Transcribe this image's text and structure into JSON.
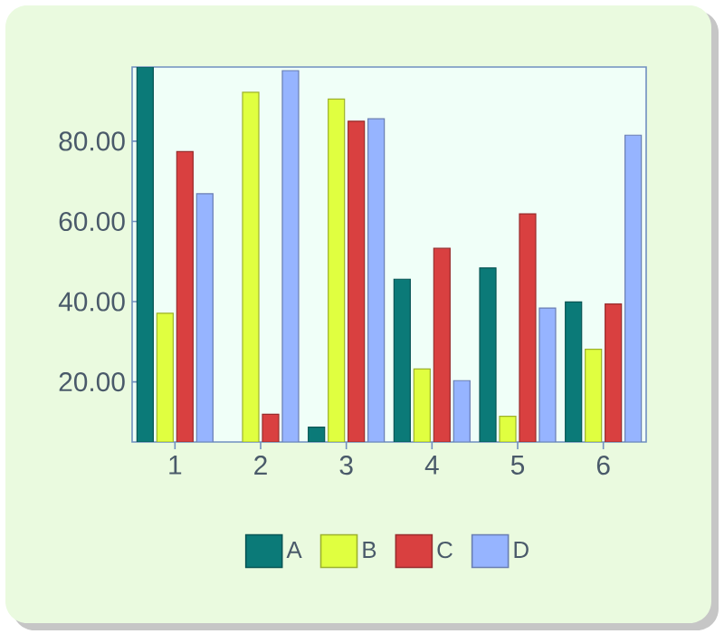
{
  "chart_data": {
    "type": "bar",
    "categories": [
      "1",
      "2",
      "3",
      "4",
      "5",
      "6"
    ],
    "series": [
      {
        "name": "A",
        "color": "#0b7a78",
        "values": [
          98.5,
          null,
          8.7,
          45.6,
          48.4,
          39.9
        ]
      },
      {
        "name": "B",
        "color": "#e0ff40",
        "values": [
          37.1,
          92.2,
          90.5,
          23.2,
          11.4,
          28.1
        ]
      },
      {
        "name": "C",
        "color": "#d94040",
        "values": [
          77.4,
          11.9,
          85.0,
          53.3,
          61.9,
          39.4
        ]
      },
      {
        "name": "D",
        "color": "#96b4ff",
        "values": [
          66.9,
          97.6,
          85.6,
          20.3,
          38.4,
          81.5
        ]
      }
    ],
    "ylim": [
      5,
      98.5
    ],
    "yticks": [
      {
        "value": 20,
        "label": "20.00"
      },
      {
        "value": 40,
        "label": "40.00"
      },
      {
        "value": 60,
        "label": "60.00"
      },
      {
        "value": 80,
        "label": "80.00"
      }
    ],
    "legend": "bottom"
  }
}
